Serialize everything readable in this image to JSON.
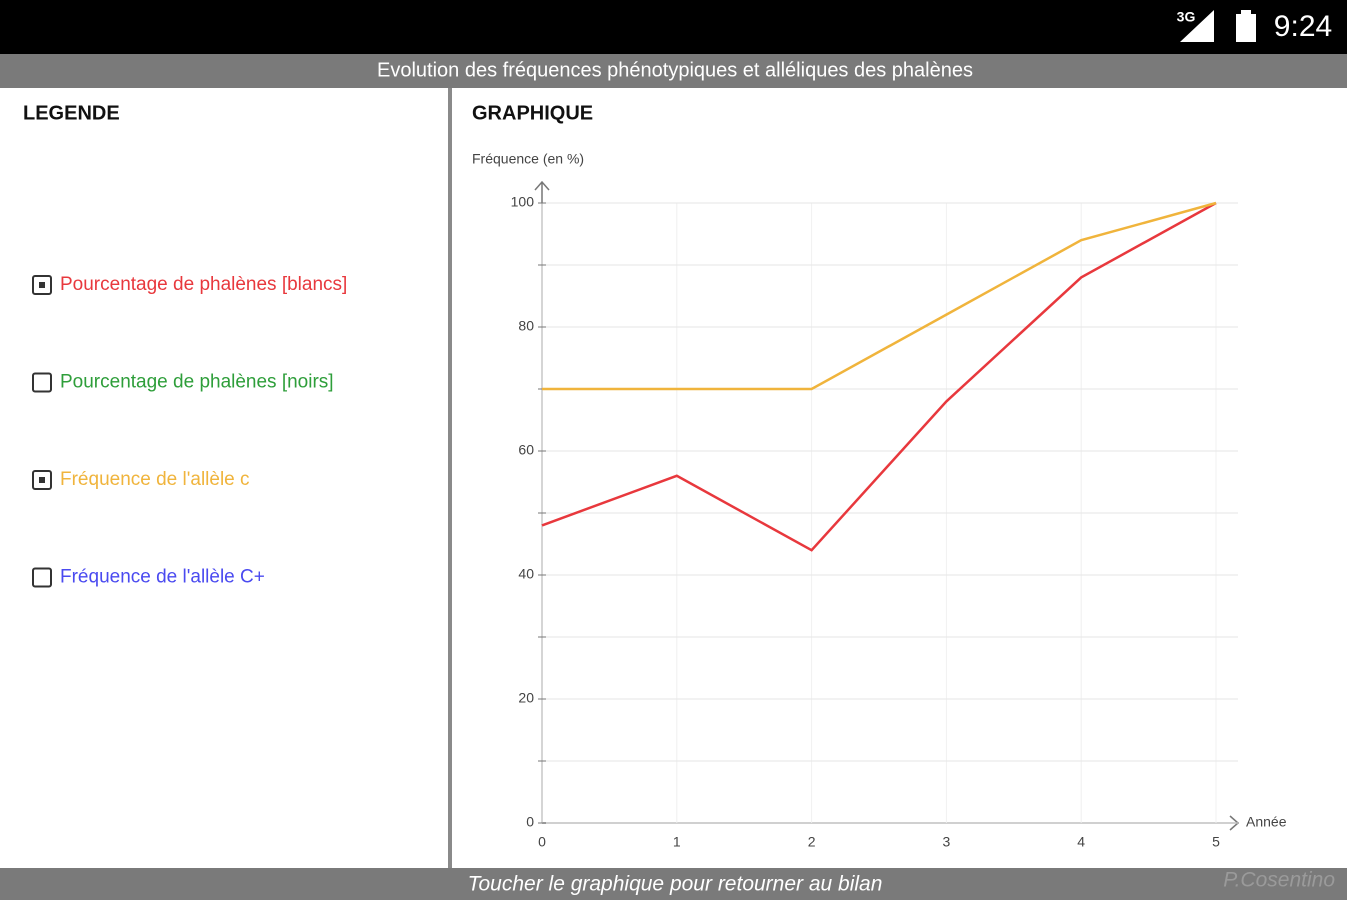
{
  "status_bar": {
    "network": "3G",
    "time": "9:24"
  },
  "header": {
    "title": "Evolution des fréquences phénotypiques et alléliques des phalènes"
  },
  "legend": {
    "title": "LEGENDE"
  },
  "graph": {
    "title": "GRAPHIQUE"
  },
  "chart_data": {
    "type": "line",
    "y_label": "Fréquence (en %)",
    "x_label": "Année",
    "xlim": [
      0,
      5
    ],
    "xticks": [
      0,
      1,
      2,
      3,
      4,
      5
    ],
    "ylim": [
      0,
      100
    ],
    "yticks": [
      0,
      20,
      40,
      60,
      80,
      100
    ],
    "minor_yticks": [
      10,
      30,
      50,
      70,
      90
    ],
    "grid": true,
    "x": [
      0,
      1,
      2,
      3,
      4,
      5
    ],
    "series": [
      {
        "name": "Pourcentage de phalènes [blancs]",
        "color": "#e8383d",
        "visible": true,
        "values": [
          48,
          56,
          44,
          68,
          88,
          100
        ]
      },
      {
        "name": "Pourcentage de phalènes [noirs]",
        "color": "#2e9e3a",
        "visible": false
      },
      {
        "name": "Fréquence de l'allèle c",
        "color": "#f0b43c",
        "visible": true,
        "values": [
          70,
          70,
          70,
          82,
          94,
          100
        ]
      },
      {
        "name": "Fréquence de l'allèle C+",
        "color": "#4a4af0",
        "visible": false
      }
    ]
  },
  "footer": {
    "hint": "Toucher le graphique pour retourner au bilan",
    "credit": "P.Cosentino"
  }
}
